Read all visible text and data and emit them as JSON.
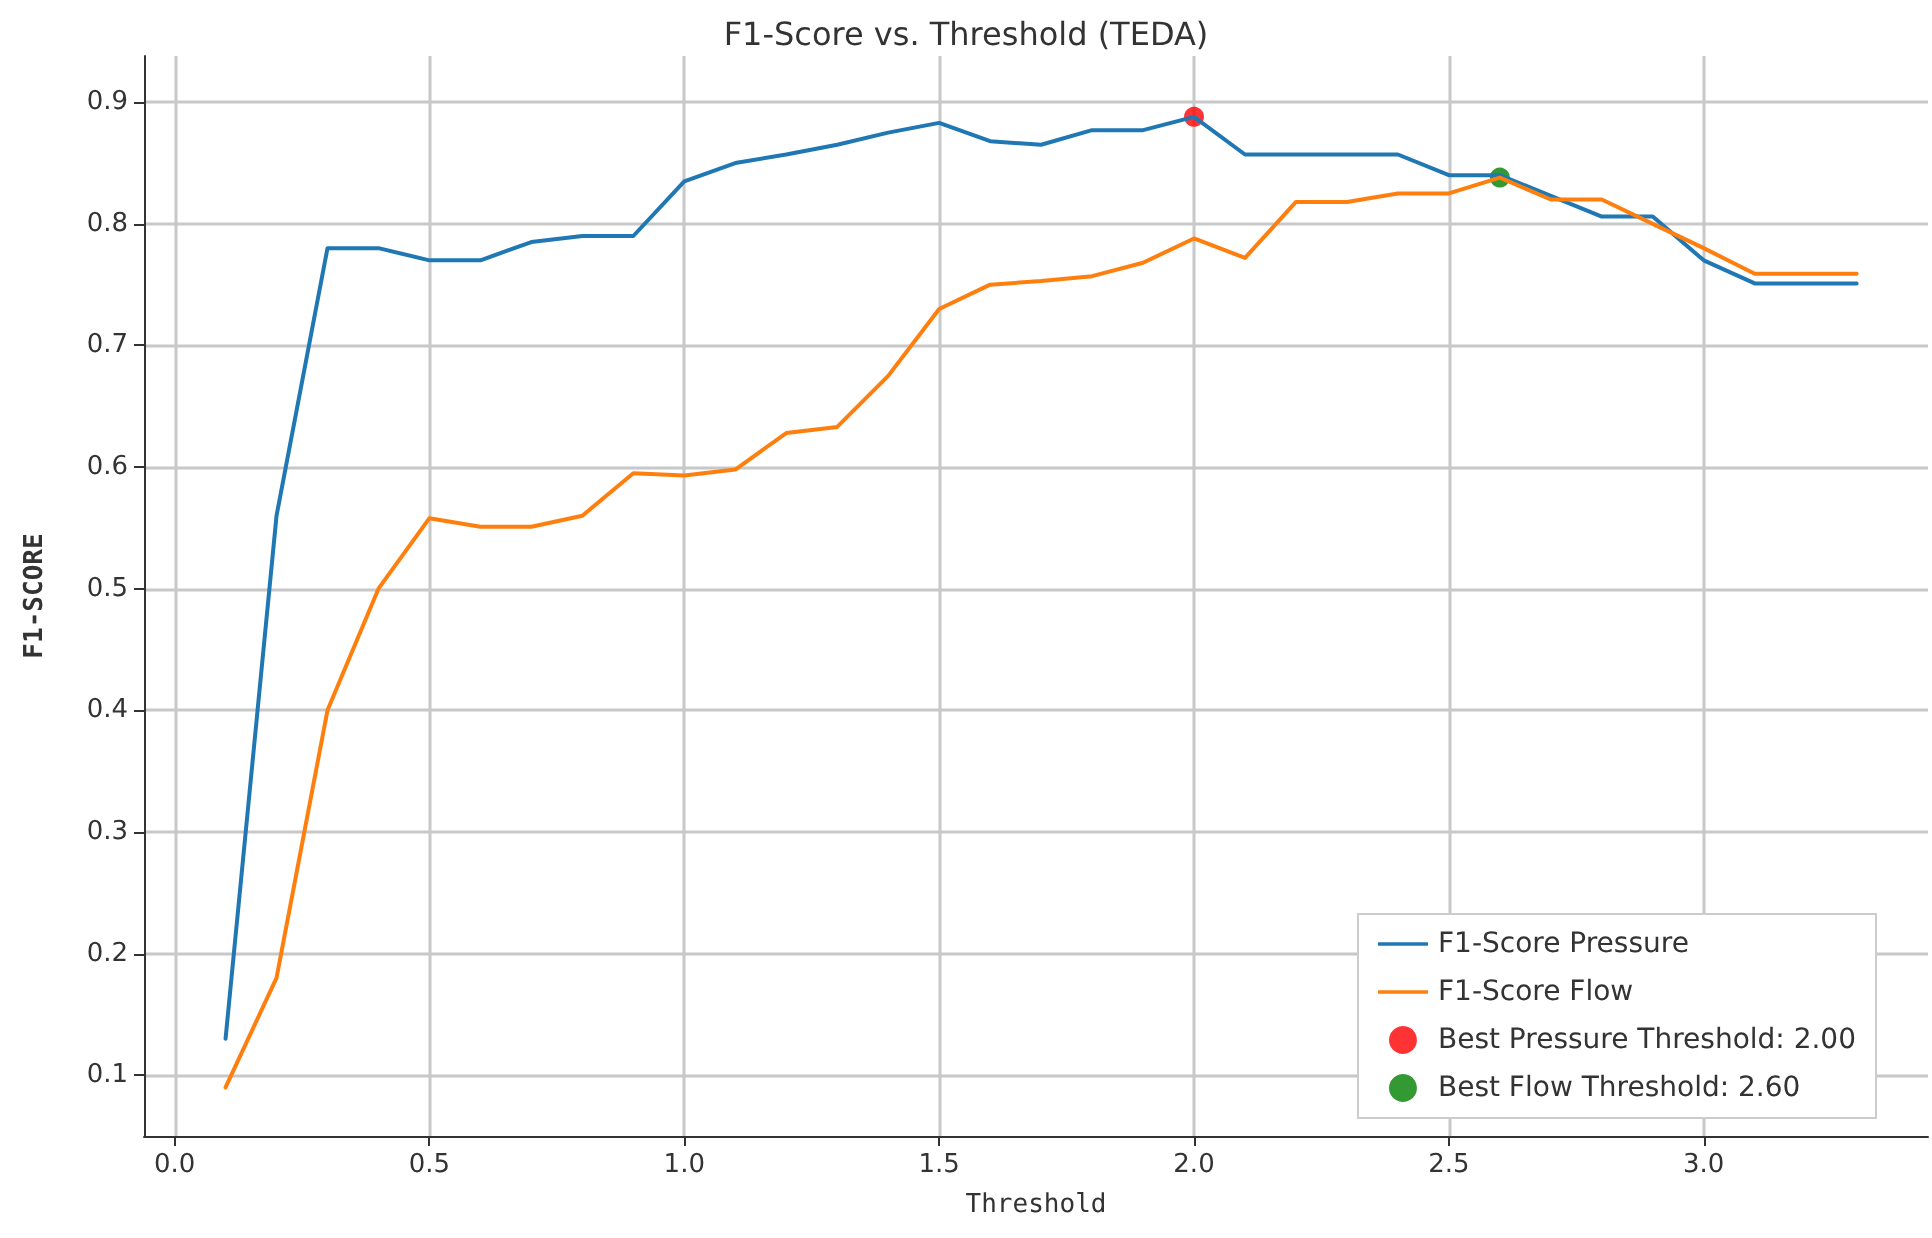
{
  "chart_data": {
    "type": "line",
    "title": "F1-Score vs. Threshold (TEDA)",
    "xlabel": "Threshold",
    "ylabel": "F1-SCORE",
    "x": [
      0.1,
      0.2,
      0.3,
      0.4,
      0.5,
      0.6,
      0.7,
      0.8,
      0.9,
      1.0,
      1.1,
      1.2,
      1.3,
      1.4,
      1.5,
      1.6,
      1.7,
      1.8,
      1.9,
      2.0,
      2.1,
      2.2,
      2.3,
      2.4,
      2.5,
      2.6,
      2.7,
      2.8,
      2.9,
      3.0,
      3.1,
      3.2,
      3.3
    ],
    "series": [
      {
        "name": "F1-Score Pressure",
        "color": "#1f77b4",
        "marker": "none",
        "values": [
          0.13,
          0.56,
          0.78,
          0.78,
          0.77,
          0.77,
          0.785,
          0.79,
          0.79,
          0.835,
          0.85,
          0.857,
          0.865,
          0.875,
          0.883,
          0.868,
          0.865,
          0.877,
          0.877,
          0.888,
          0.857,
          0.857,
          0.857,
          0.857,
          0.84,
          0.84,
          0.823,
          0.806,
          0.806,
          0.77,
          0.751,
          0.751,
          0.751
        ]
      },
      {
        "name": "F1-Score Flow",
        "color": "#ff7f0e",
        "marker": "none",
        "values": [
          0.09,
          0.18,
          0.4,
          0.5,
          0.558,
          0.551,
          0.551,
          0.56,
          0.595,
          0.593,
          0.598,
          0.628,
          0.633,
          0.675,
          0.73,
          0.75,
          0.753,
          0.757,
          0.768,
          0.788,
          0.772,
          0.818,
          0.818,
          0.825,
          0.825,
          0.838,
          0.82,
          0.82,
          0.8,
          0.78,
          0.759,
          0.759,
          0.759
        ]
      },
      {
        "name": "Best Pressure Threshold: 2.00",
        "type": "scatter",
        "color": "#ff0000",
        "marker": "circle",
        "x": [
          2.0
        ],
        "values": [
          0.888
        ]
      },
      {
        "name": "Best Flow Threshold: 2.60",
        "type": "scatter",
        "color": "#008000",
        "marker": "circle",
        "x": [
          2.6
        ],
        "values": [
          0.838
        ]
      }
    ],
    "xlim": [
      -0.06,
      3.44
    ],
    "ylim": [
      0.05,
      0.938
    ],
    "xticks": [
      {
        "value": 0,
        "label": "0.0"
      },
      {
        "value": 0.5,
        "label": "0.5"
      },
      {
        "value": 1,
        "label": "1.0"
      },
      {
        "value": 1.5,
        "label": "1.5"
      },
      {
        "value": 2,
        "label": "2.0"
      },
      {
        "value": 2.5,
        "label": "2.5"
      },
      {
        "value": 3,
        "label": "3.0"
      }
    ],
    "yticks": [
      0.1,
      0.2,
      0.3,
      0.4,
      0.5,
      0.6,
      0.7,
      0.8,
      0.9
    ],
    "grid": true,
    "legend": "bottom right",
    "line_style": "solid"
  }
}
